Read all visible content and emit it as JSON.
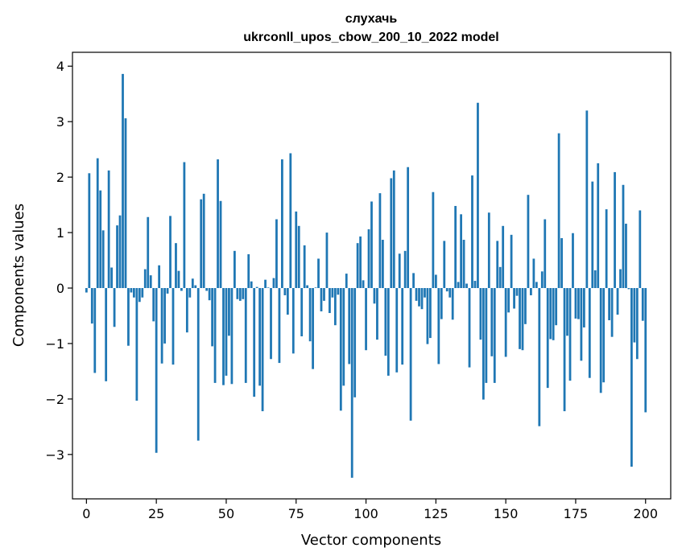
{
  "chart_data": {
    "type": "bar",
    "title": "слухачь",
    "subtitle": "ukrconll_upos_cbow_200_10_2022 model",
    "xlabel": "Vector components",
    "ylabel": "Components values",
    "xlim": [
      -5,
      209
    ],
    "ylim": [
      -3.8,
      4.25
    ],
    "xticks": [
      0,
      25,
      50,
      75,
      100,
      125,
      150,
      175,
      200
    ],
    "yticks": [
      -3,
      -2,
      -1,
      0,
      1,
      2,
      3,
      4
    ],
    "xtick_labels": [
      "0",
      "25",
      "50",
      "75",
      "100",
      "125",
      "150",
      "175",
      "200"
    ],
    "ytick_labels": [
      "−3",
      "−2",
      "−1",
      "0",
      "1",
      "2",
      "3",
      "4"
    ],
    "grid": false,
    "bar_color": "#1f77b4",
    "values": [
      -0.08,
      2.07,
      -0.64,
      -1.53,
      2.34,
      1.76,
      1.04,
      -1.68,
      2.12,
      0.37,
      -0.7,
      1.13,
      1.31,
      3.86,
      3.06,
      -1.04,
      -0.08,
      -0.17,
      -2.03,
      -0.25,
      -0.17,
      0.34,
      1.28,
      0.23,
      -0.6,
      -2.97,
      0.41,
      -1.36,
      -1.0,
      -0.1,
      1.3,
      -1.38,
      0.81,
      0.31,
      -0.05,
      2.27,
      -0.8,
      -0.17,
      0.17,
      0.05,
      -2.75,
      1.6,
      1.7,
      -0.05,
      -0.22,
      -1.05,
      -1.71,
      2.32,
      1.57,
      -1.75,
      -1.58,
      -0.86,
      -1.73,
      0.67,
      -0.2,
      -0.23,
      -0.2,
      -1.71,
      0.61,
      0.12,
      -1.96,
      0.02,
      -1.76,
      -2.22,
      0.15,
      0.01,
      -1.28,
      0.18,
      1.24,
      -1.35,
      2.32,
      -0.13,
      -0.48,
      2.43,
      -1.18,
      1.38,
      1.12,
      -0.87,
      0.77,
      0.05,
      -0.96,
      -1.46,
      0.01,
      0.53,
      -0.42,
      -0.23,
      1.0,
      -0.45,
      -0.17,
      -0.67,
      -0.12,
      -2.21,
      -1.76,
      0.26,
      -1.37,
      -3.42,
      -1.97,
      0.81,
      0.93,
      0.14,
      -1.12,
      1.06,
      1.56,
      -0.28,
      -0.93,
      1.71,
      0.87,
      -1.22,
      -1.58,
      1.98,
      2.12,
      -1.52,
      0.62,
      -1.38,
      0.67,
      2.18,
      -2.39,
      0.27,
      -0.23,
      -0.33,
      -0.38,
      -0.17,
      -1.01,
      -0.9,
      1.73,
      0.24,
      -1.37,
      -0.56,
      0.85,
      -0.06,
      -0.17,
      -0.57,
      1.48,
      0.11,
      1.33,
      0.87,
      0.08,
      -1.43,
      2.03,
      0.13,
      3.34,
      -0.93,
      -2.01,
      -1.71,
      1.36,
      -1.23,
      -1.71,
      0.85,
      0.38,
      1.12,
      -1.24,
      -0.44,
      0.96,
      -0.37,
      -0.14,
      -1.1,
      -1.12,
      -0.65,
      1.68,
      -0.13,
      0.53,
      0.11,
      -2.49,
      0.3,
      1.24,
      -1.8,
      -0.92,
      -0.94,
      -0.67,
      2.79,
      0.9,
      -2.22,
      -0.86,
      -1.67,
      0.99,
      -0.55,
      -0.56,
      -1.31,
      -0.71,
      3.2,
      -1.62,
      1.92,
      0.32,
      2.25,
      -1.89,
      -1.7,
      1.42,
      -0.58,
      -0.88,
      2.09,
      -0.48,
      0.34,
      1.86,
      1.16,
      -0.02,
      -3.22,
      -0.98,
      -1.28,
      1.4,
      -0.59,
      -2.24
    ]
  }
}
